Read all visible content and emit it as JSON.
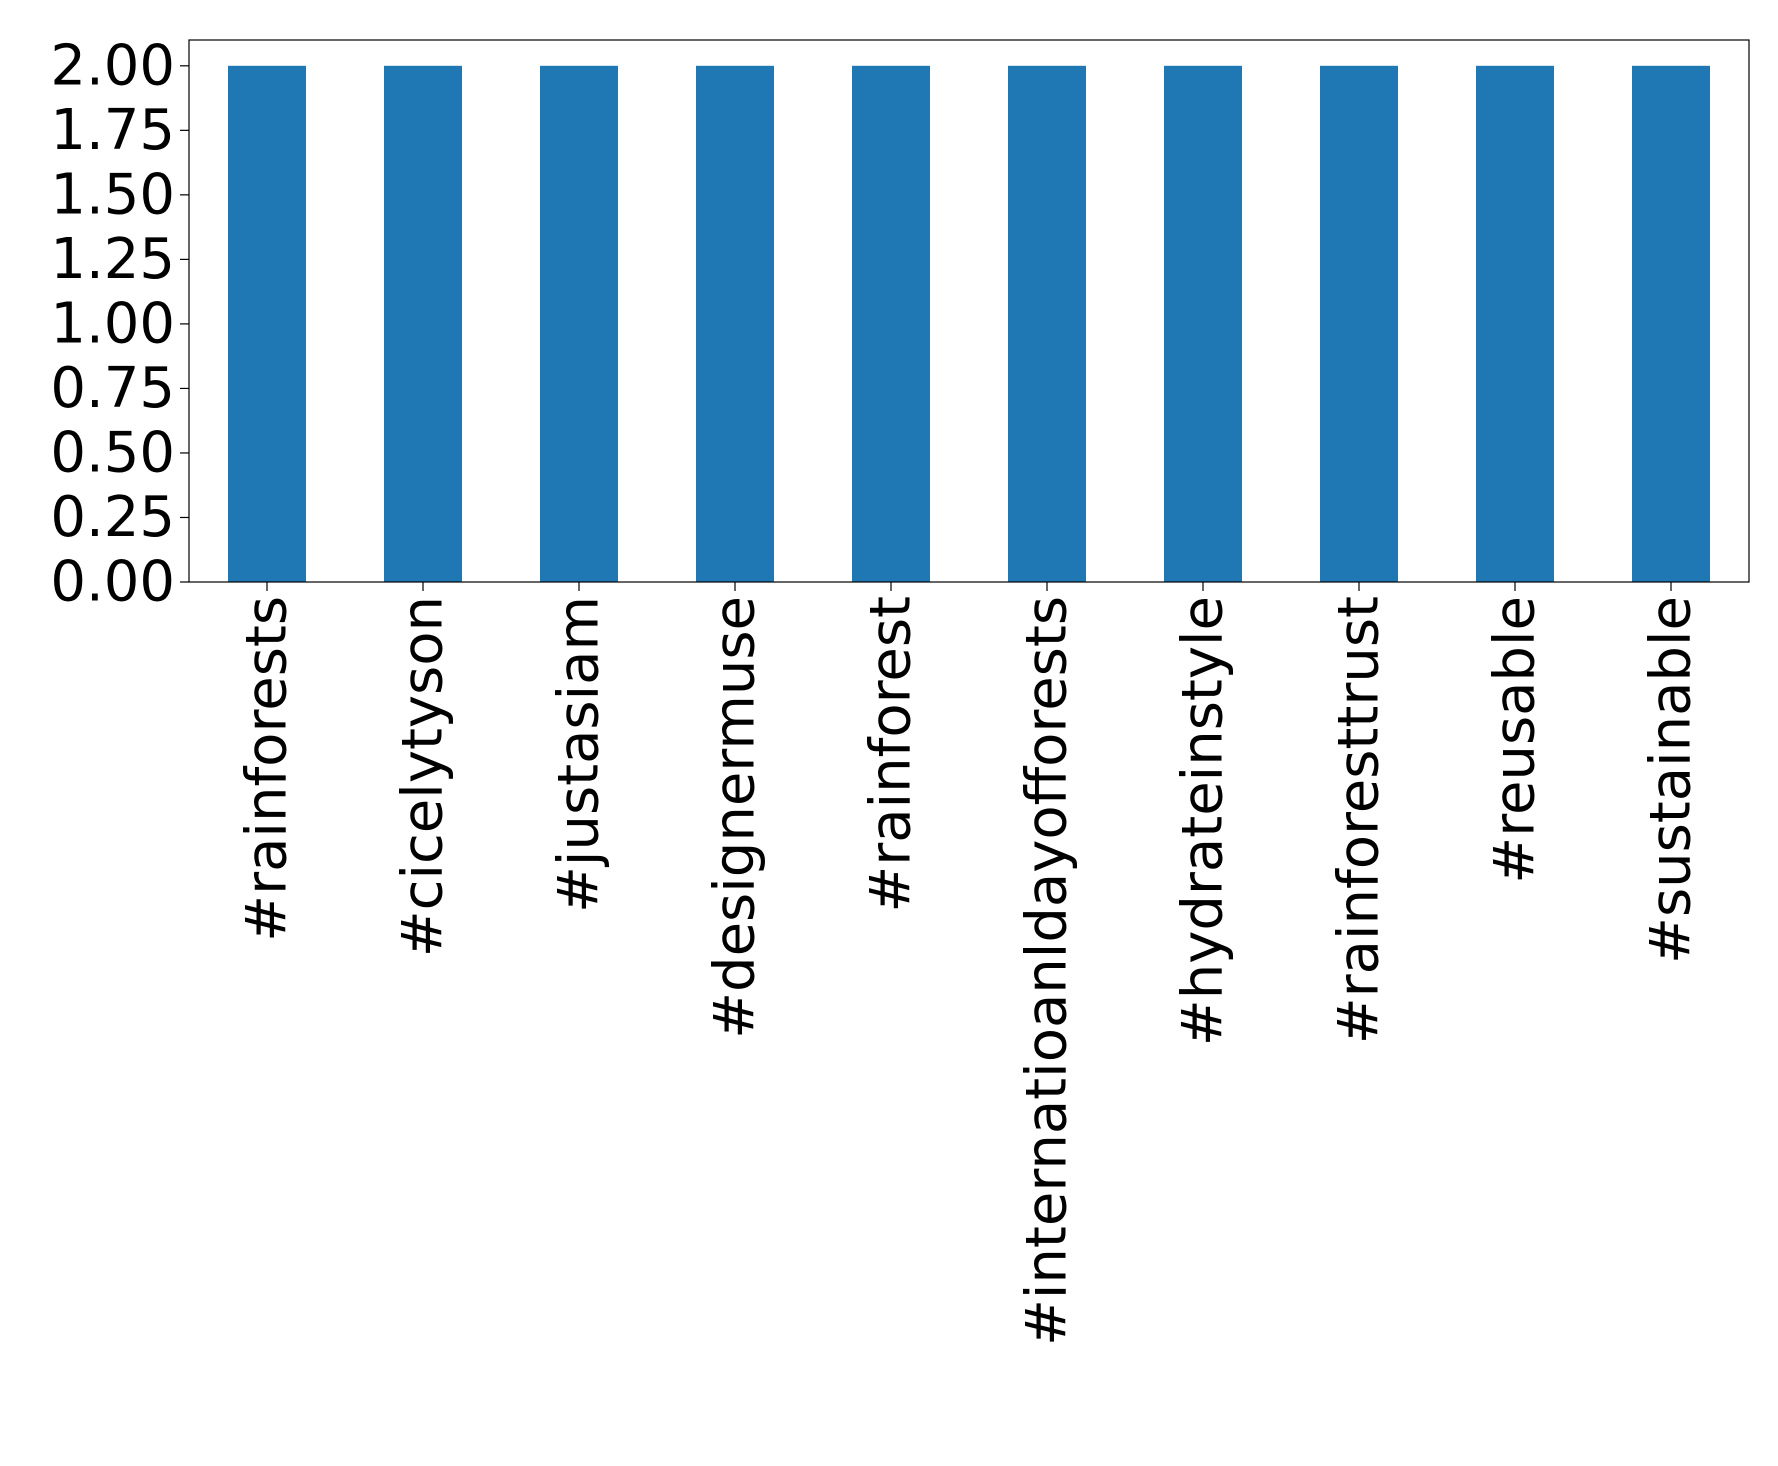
{
  "chart_data": {
    "type": "bar",
    "categories": [
      "#rainforests",
      "#cicelytyson",
      "#justasiam",
      "#designermuse",
      "#rainforest",
      "#internatioanldayofforests",
      "#hydrateinstyle",
      "#rainforesttrust",
      "#reusable",
      "#sustainable"
    ],
    "values": [
      2,
      2,
      2,
      2,
      2,
      2,
      2,
      2,
      2,
      2
    ],
    "color": "#1f77b4",
    "ylim": [
      0,
      2.1
    ],
    "yticks": [
      {
        "value": 0,
        "label": "0.00"
      },
      {
        "value": 0.25,
        "label": "0.25"
      },
      {
        "value": 0.5,
        "label": "0.50"
      },
      {
        "value": 0.75,
        "label": "0.75"
      },
      {
        "value": 1,
        "label": "1.00"
      },
      {
        "value": 1.25,
        "label": "1.25"
      },
      {
        "value": 1.5,
        "label": "1.50"
      },
      {
        "value": 1.75,
        "label": "1.75"
      },
      {
        "value": 2,
        "label": "2.00"
      }
    ],
    "grid": false
  }
}
